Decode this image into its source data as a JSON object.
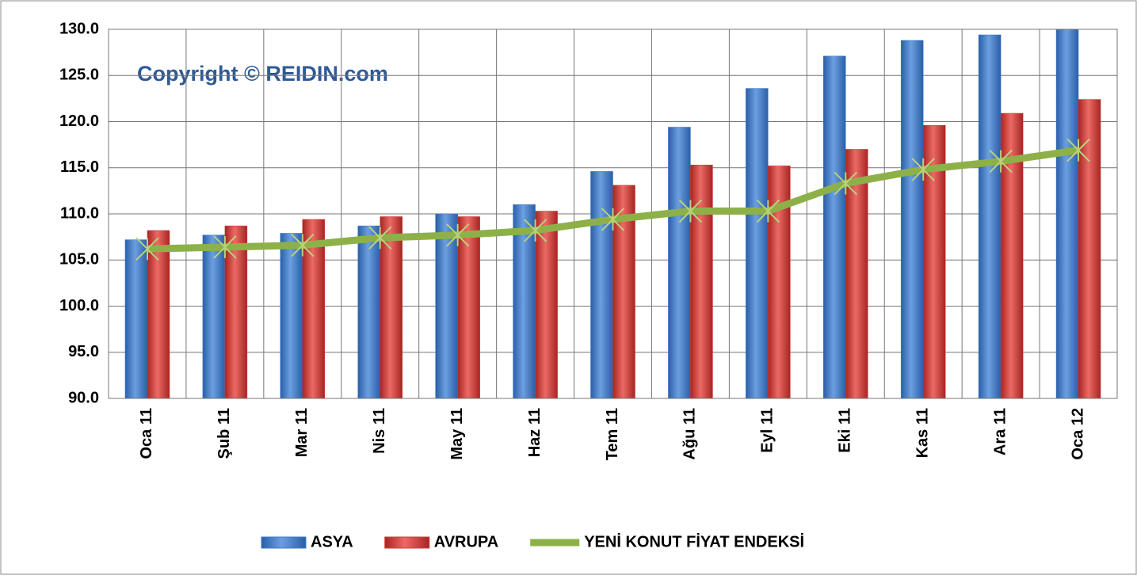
{
  "chart_data": {
    "type": "bar-line",
    "annotation": "Copyright © REIDIN.com",
    "categories": [
      "Oca 11",
      "Şub 11",
      "Mar 11",
      "Nis 11",
      "May 11",
      "Haz 11",
      "Tem 11",
      "Ağu 11",
      "Eyl 11",
      "Eki 11",
      "Kas 11",
      "Ara 11",
      "Oca 12"
    ],
    "series": [
      {
        "name": "ASYA",
        "type": "bar",
        "color": "#3f78c9",
        "values": [
          107.2,
          107.7,
          107.9,
          108.7,
          110.0,
          111.0,
          114.6,
          119.4,
          123.6,
          127.1,
          128.8,
          129.4,
          130.0
        ]
      },
      {
        "name": "AVRUPA",
        "type": "bar",
        "color": "#cf3b38",
        "values": [
          108.2,
          108.7,
          109.4,
          109.7,
          109.7,
          110.3,
          113.1,
          115.3,
          115.2,
          117.0,
          119.6,
          120.9,
          122.4
        ]
      },
      {
        "name": "YENİ KONUT FİYAT ENDEKSİ",
        "type": "line",
        "color": "#8db148",
        "values": [
          106.2,
          106.4,
          106.6,
          107.4,
          107.7,
          108.2,
          109.4,
          110.3,
          110.3,
          113.3,
          114.8,
          115.7,
          116.9
        ]
      }
    ],
    "ylim": [
      90,
      130
    ],
    "yticks": [
      {
        "value": 90,
        "label": "90.0"
      },
      {
        "value": 95,
        "label": "95.0"
      },
      {
        "value": 100,
        "label": "100.0"
      },
      {
        "value": 105,
        "label": "105.0"
      },
      {
        "value": 110,
        "label": "110.0"
      },
      {
        "value": 115,
        "label": "115.0"
      },
      {
        "value": 120,
        "label": "120.0"
      },
      {
        "value": 125,
        "label": "125.0"
      },
      {
        "value": 130,
        "label": "130.0"
      }
    ],
    "grid": true,
    "legend": "bottom"
  }
}
